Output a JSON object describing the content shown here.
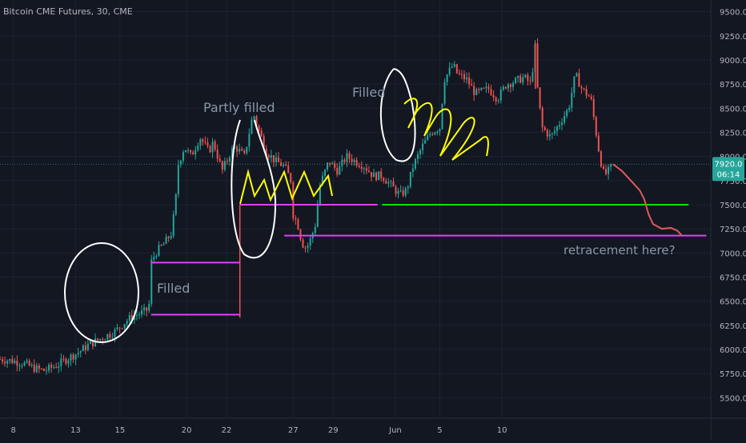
{
  "chart_title": "Bitcoin CME Futures, 30, CME",
  "price_tag": {
    "value": "7920.0",
    "countdown": "06:14"
  },
  "colors": {
    "background": "#131722",
    "up": "#26a69a",
    "down": "#ef5350",
    "magenta": "#e040fb",
    "green": "#00e600",
    "yellow": "#ffff00",
    "white_ann": "#ffffff",
    "projection": "#e05a5a",
    "text": "#b2b5be",
    "annotation_text": "#8a97a8"
  },
  "annotations": {
    "filled_left": "Filled",
    "partly_filled": "Partly filled",
    "filled_top": "Filled",
    "retracement": "retracement here?"
  },
  "chart_data": {
    "type": "candlestick",
    "title": "Bitcoin CME Futures, 30, CME",
    "x_ticks": [
      "8",
      "13",
      "15",
      "20",
      "22",
      "27",
      "29",
      "Jun",
      "5",
      "10"
    ],
    "y_ticks": [
      5500,
      5750,
      6000,
      6250,
      6500,
      6750,
      7000,
      7250,
      7500,
      7750,
      8000,
      8250,
      8500,
      8750,
      9000,
      9250,
      9500
    ],
    "y_range": [
      5400,
      9600
    ],
    "last_price": 7920.0,
    "price_path": [
      [
        0,
        5900
      ],
      [
        3,
        5880
      ],
      [
        5,
        5860
      ],
      [
        8,
        5800
      ],
      [
        10,
        5780
      ],
      [
        13,
        5840
      ],
      [
        15,
        5900
      ],
      [
        18,
        5980
      ],
      [
        20,
        6050
      ],
      [
        23,
        6120
      ],
      [
        26,
        6190
      ],
      [
        28,
        6280
      ],
      [
        30,
        6350
      ],
      [
        32,
        6380
      ],
      [
        33.5,
        6420
      ],
      [
        34,
        6900
      ],
      [
        35,
        7000
      ],
      [
        37,
        7100
      ],
      [
        38.5,
        7200
      ],
      [
        39.5,
        7500
      ],
      [
        40,
        7900
      ],
      [
        41.5,
        8100
      ],
      [
        43,
        8000
      ],
      [
        45,
        8200
      ],
      [
        47,
        8050
      ],
      [
        48,
        8150
      ],
      [
        50,
        7850
      ],
      [
        52,
        8050
      ],
      [
        53,
        8100
      ],
      [
        55,
        8000
      ],
      [
        57,
        8450
      ],
      [
        58,
        8300
      ],
      [
        60,
        8050
      ],
      [
        62,
        7950
      ],
      [
        64,
        7900
      ],
      [
        65.5,
        7750
      ],
      [
        66,
        7400
      ],
      [
        67,
        7300
      ],
      [
        68,
        7100
      ],
      [
        69,
        7050
      ],
      [
        70,
        7150
      ],
      [
        71,
        7300
      ],
      [
        72,
        7700
      ],
      [
        74,
        7950
      ],
      [
        76,
        7850
      ],
      [
        78,
        8000
      ],
      [
        80,
        7950
      ],
      [
        82,
        7900
      ],
      [
        84,
        7800
      ],
      [
        86,
        7800
      ],
      [
        88,
        7700
      ],
      [
        90,
        7600
      ],
      [
        91.5,
        7650
      ],
      [
        93,
        7900
      ],
      [
        95,
        8100
      ],
      [
        97,
        8250
      ],
      [
        99,
        8300
      ],
      [
        100,
        8800
      ],
      [
        102,
        8950
      ],
      [
        103,
        8850
      ],
      [
        105,
        8800
      ],
      [
        107,
        8650
      ],
      [
        110,
        8700
      ],
      [
        112,
        8600
      ],
      [
        114,
        8750
      ],
      [
        116,
        8780
      ],
      [
        118,
        8820
      ],
      [
        119.5,
        8750
      ],
      [
        120.5,
        9150
      ],
      [
        121,
        8700
      ],
      [
        122,
        8300
      ],
      [
        124,
        8200
      ],
      [
        126,
        8350
      ],
      [
        128,
        8500
      ],
      [
        129.5,
        8850
      ],
      [
        131,
        8700
      ],
      [
        133,
        8600
      ],
      [
        134,
        8300
      ],
      [
        135,
        8000
      ],
      [
        136,
        7800
      ],
      [
        137,
        7850
      ],
      [
        138,
        7920
      ]
    ],
    "projection": [
      [
        138,
        7920
      ],
      [
        140,
        7850
      ],
      [
        142,
        7750
      ],
      [
        144,
        7650
      ],
      [
        145,
        7560
      ],
      [
        146,
        7400
      ],
      [
        147,
        7300
      ],
      [
        149,
        7250
      ],
      [
        151,
        7260
      ],
      [
        152.5,
        7230
      ],
      [
        153.5,
        7180
      ]
    ],
    "levels": [
      {
        "price": 6900,
        "from": 34,
        "to": 54,
        "color": "magenta"
      },
      {
        "price": 6360,
        "from": 34,
        "to": 54,
        "color": "magenta"
      },
      {
        "price": 7500,
        "from": 54,
        "to": 85,
        "color": "magenta"
      },
      {
        "price": 7180,
        "from": 64,
        "to": 159,
        "color": "magenta"
      },
      {
        "price": 7500,
        "from": 86,
        "to": 155,
        "color": "green"
      }
    ]
  }
}
